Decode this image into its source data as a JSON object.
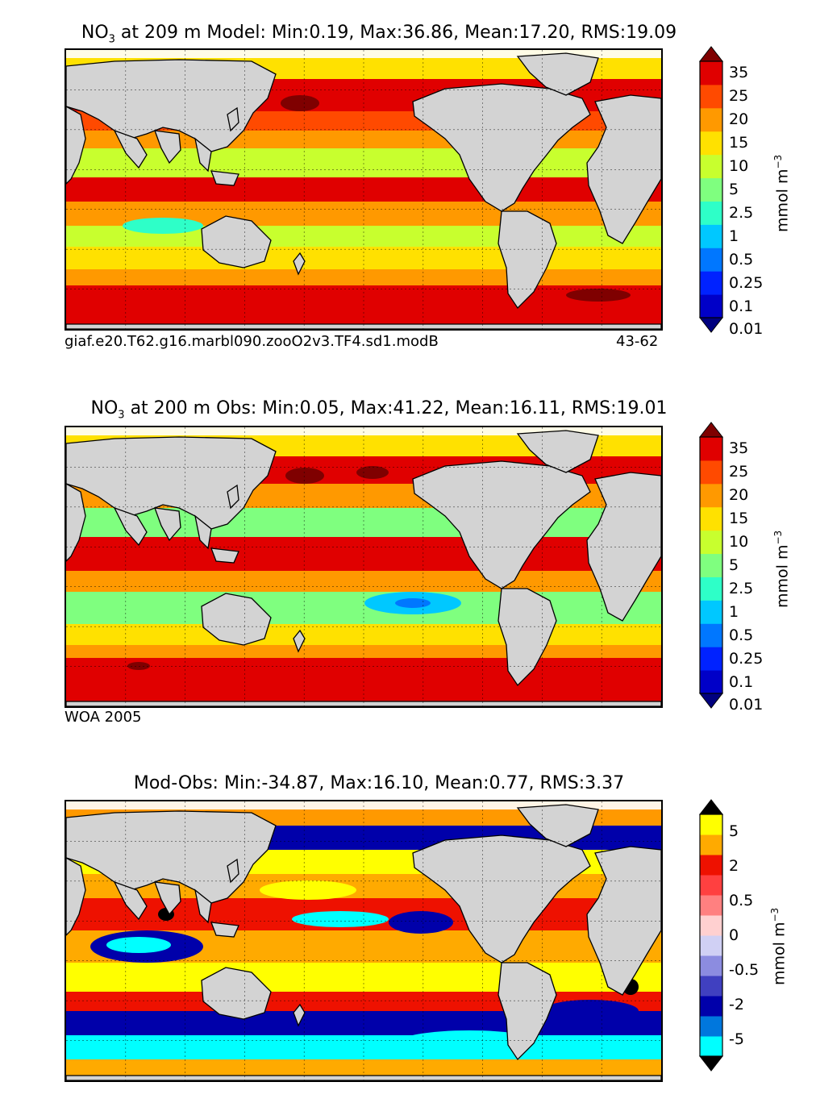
{
  "panels": [
    {
      "title_species": "NO",
      "title_sub": "3",
      "title_rest": " at 209 m Model: Min:0.19, Max:36.86, Mean:17.20, RMS:19.09",
      "caption_left": "giaf.e20.T62.g16.marbl090.zooO2v3.TF4.sd1.modB",
      "caption_right": "43-62",
      "colorbar": {
        "labels": [
          "35",
          "25",
          "20",
          "15",
          "10",
          "5",
          "2.5",
          "1",
          "0.5",
          "0.25",
          "0.1",
          "0.01"
        ],
        "colors": [
          "#00007f",
          "#0000c8",
          "#0022ff",
          "#0077ff",
          "#00c8ff",
          "#2effc8",
          "#7fff7f",
          "#c8ff2e",
          "#ffe100",
          "#ff9900",
          "#ff4a00",
          "#e00000",
          "#7f0000"
        ],
        "unit_text": "mmol m",
        "unit_sup": "−3"
      }
    },
    {
      "title_species": "NO",
      "title_sub": "3",
      "title_rest": " at 200 m Obs: Min:0.05, Max:41.22, Mean:16.11, RMS:19.01",
      "caption_left": "WOA 2005",
      "caption_right": "",
      "colorbar": {
        "labels": [
          "35",
          "25",
          "20",
          "15",
          "10",
          "5",
          "2.5",
          "1",
          "0.5",
          "0.25",
          "0.1",
          "0.01"
        ],
        "colors": [
          "#00007f",
          "#0000c8",
          "#0022ff",
          "#0077ff",
          "#00c8ff",
          "#2effc8",
          "#7fff7f",
          "#c8ff2e",
          "#ffe100",
          "#ff9900",
          "#ff4a00",
          "#e00000",
          "#7f0000"
        ],
        "unit_text": "mmol m",
        "unit_sup": "−3"
      }
    },
    {
      "title_species": "",
      "title_sub": "",
      "title_rest": "Mod-Obs: Min:-34.87, Max:16.10, Mean:0.77, RMS:3.37",
      "caption_left": "",
      "caption_right": "",
      "colorbar": {
        "labels": [
          "5",
          "2",
          "0.5",
          "0",
          "-0.5",
          "-2",
          "-5"
        ],
        "colors": [
          "#000000",
          "#00ffff",
          "#0077dd",
          "#0000aa",
          "#4040c0",
          "#8c8ce0",
          "#d0d0f4",
          "#ffd0d0",
          "#ff8080",
          "#ff4040",
          "#ee1100",
          "#ffaa00",
          "#ffff00",
          "#000000"
        ],
        "unit_text": "mmol m",
        "unit_sup": "−3"
      }
    }
  ]
}
